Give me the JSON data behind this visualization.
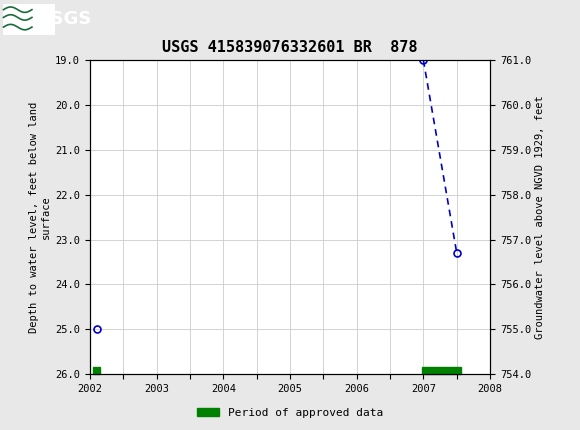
{
  "title": "USGS 415839076332601 BR  878",
  "title_fontsize": 11,
  "background_color": "#e8e8e8",
  "plot_bg_color": "#ffffff",
  "header_color": "#1a6b3c",
  "left_ylabel": "Depth to water level, feet below land\nsurface",
  "right_ylabel": "Groundwater level above NGVD 1929, feet",
  "ylim_left": [
    26.0,
    19.0
  ],
  "ylim_right": [
    754.0,
    761.0
  ],
  "yticks_left": [
    19.0,
    20.0,
    21.0,
    22.0,
    23.0,
    24.0,
    25.0,
    26.0
  ],
  "yticks_right": [
    754.0,
    755.0,
    756.0,
    757.0,
    758.0,
    759.0,
    760.0,
    761.0
  ],
  "xlim": [
    2002.0,
    2008.0
  ],
  "xticks": [
    2002,
    2002.5,
    2003,
    2003.5,
    2004,
    2004.5,
    2005,
    2005.5,
    2006,
    2006.5,
    2007,
    2007.5,
    2008
  ],
  "xticklabels": [
    "2002",
    "",
    "2003",
    "",
    "2004",
    "",
    "2005",
    "",
    "2006",
    "",
    "2007",
    "",
    "2008"
  ],
  "isolated_x": [
    2002.1
  ],
  "isolated_y": [
    25.0
  ],
  "line_x": [
    2007.0,
    2007.5
  ],
  "line_y": [
    19.0,
    23.3
  ],
  "line_color": "#0000cc",
  "marker_facecolor": "none",
  "marker_edgecolor": "#0000cc",
  "marker_size": 5,
  "grid_color": "#cccccc",
  "approved_bar1_x_start": 2002.05,
  "approved_bar1_x_end": 2002.15,
  "approved_bar2_x_start": 2006.98,
  "approved_bar2_x_end": 2007.57,
  "approved_bar_y": 26.0,
  "approved_bar_height": 0.15,
  "approved_color": "#008000",
  "legend_label": "Period of approved data"
}
